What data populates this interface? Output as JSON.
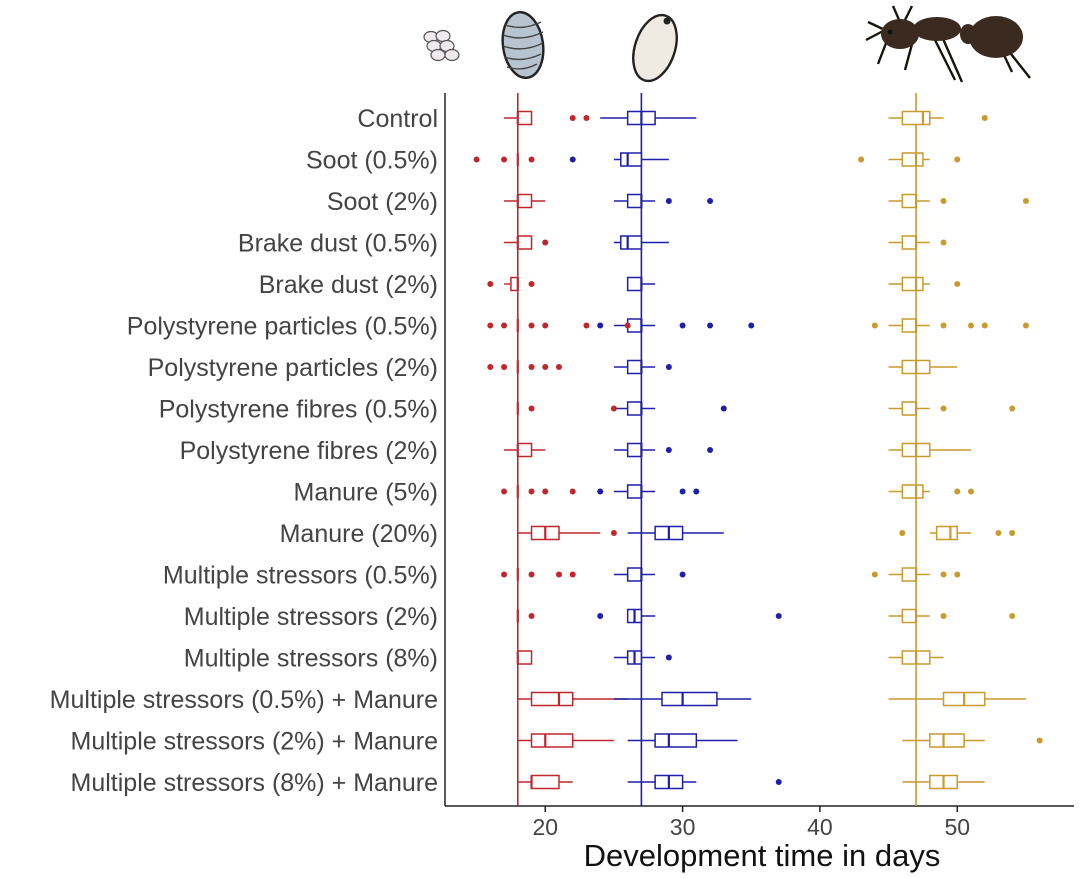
{
  "chart_data": {
    "type": "boxplot",
    "xlabel": "Development time in days",
    "xlim": [
      12.7,
      58.5
    ],
    "xticks": [
      20,
      30,
      40,
      50
    ],
    "categories": [
      "Control",
      "Soot (0.5%)",
      "Soot (2%)",
      "Brake dust (0.5%)",
      "Brake dust (2%)",
      "Polystyrene particles (0.5%)",
      "Polystyrene particles (2%)",
      "Polystyrene fibres (0.5%)",
      "Polystyrene fibres (2%)",
      "Manure (5%)",
      "Manure (20%)",
      "Multiple stressors (0.5%)",
      "Multiple stressors (2%)",
      "Multiple stressors (8%)",
      "Multiple stressors (0.5%) + Manure",
      "Multiple stressors (2%) + Manure",
      "Multiple stressors (8%) + Manure"
    ],
    "stage_icons": [
      "eggs-icon",
      "larva-icon",
      "pupa-icon",
      "ant-worker-icon"
    ],
    "series": [
      {
        "name": "Larval stage",
        "color": "#c0272d",
        "reference_line": 18,
        "boxes": [
          {
            "wlo": 17,
            "q1": 18,
            "med": 18,
            "q3": 19,
            "whi": 19,
            "outliers": [
              22,
              23
            ]
          },
          {
            "wlo": 18,
            "q1": 18,
            "med": 18,
            "q3": 18,
            "whi": 18,
            "outliers": [
              15,
              17,
              19
            ]
          },
          {
            "wlo": 17,
            "q1": 18,
            "med": 18,
            "q3": 19,
            "whi": 20,
            "outliers": []
          },
          {
            "wlo": 17,
            "q1": 18,
            "med": 18,
            "q3": 19,
            "whi": 19,
            "outliers": [
              20
            ]
          },
          {
            "wlo": 17,
            "q1": 17.5,
            "med": 18,
            "q3": 18,
            "whi": 18,
            "outliers": [
              16,
              19
            ]
          },
          {
            "wlo": 18,
            "q1": 18,
            "med": 18,
            "q3": 18,
            "whi": 18,
            "outliers": [
              16,
              17,
              19,
              20,
              23,
              26
            ]
          },
          {
            "wlo": 18,
            "q1": 18,
            "med": 18,
            "q3": 18,
            "whi": 18,
            "outliers": [
              16,
              17,
              19,
              20,
              21
            ]
          },
          {
            "wlo": 18,
            "q1": 18,
            "med": 18,
            "q3": 18,
            "whi": 18,
            "outliers": [
              19,
              25
            ]
          },
          {
            "wlo": 17,
            "q1": 18,
            "med": 18,
            "q3": 19,
            "whi": 20,
            "outliers": []
          },
          {
            "wlo": 18,
            "q1": 18,
            "med": 18,
            "q3": 18,
            "whi": 18,
            "outliers": [
              17,
              19,
              20,
              22
            ]
          },
          {
            "wlo": 18,
            "q1": 19,
            "med": 20,
            "q3": 21,
            "whi": 24,
            "outliers": [
              25
            ]
          },
          {
            "wlo": 18,
            "q1": 18,
            "med": 18,
            "q3": 18,
            "whi": 18,
            "outliers": [
              17,
              19,
              21,
              22
            ]
          },
          {
            "wlo": 18,
            "q1": 18,
            "med": 18,
            "q3": 18,
            "whi": 18,
            "outliers": [
              19
            ]
          },
          {
            "wlo": 18,
            "q1": 18,
            "med": 18,
            "q3": 19,
            "whi": 19,
            "outliers": []
          },
          {
            "wlo": 18,
            "q1": 19,
            "med": 21,
            "q3": 22,
            "whi": 26,
            "outliers": []
          },
          {
            "wlo": 18,
            "q1": 19,
            "med": 20,
            "q3": 22,
            "whi": 25,
            "outliers": []
          },
          {
            "wlo": 18,
            "q1": 19,
            "med": 19,
            "q3": 21,
            "whi": 22,
            "outliers": []
          }
        ]
      },
      {
        "name": "Pupal stage",
        "color": "#1f1fa8",
        "reference_line": 27,
        "boxes": [
          {
            "wlo": 24,
            "q1": 26,
            "med": 27,
            "q3": 28,
            "whi": 31,
            "outliers": []
          },
          {
            "wlo": 25,
            "q1": 25.5,
            "med": 26,
            "q3": 27,
            "whi": 29,
            "outliers": [
              22
            ]
          },
          {
            "wlo": 25,
            "q1": 26,
            "med": 27,
            "q3": 27,
            "whi": 28,
            "outliers": [
              29,
              32
            ]
          },
          {
            "wlo": 25,
            "q1": 25.5,
            "med": 26,
            "q3": 27,
            "whi": 29,
            "outliers": []
          },
          {
            "wlo": 26,
            "q1": 26,
            "med": 27,
            "q3": 27,
            "whi": 28,
            "outliers": []
          },
          {
            "wlo": 25,
            "q1": 26,
            "med": 27,
            "q3": 27,
            "whi": 28,
            "outliers": [
              24,
              30,
              32,
              35
            ]
          },
          {
            "wlo": 25,
            "q1": 26,
            "med": 27,
            "q3": 27,
            "whi": 28,
            "outliers": [
              29
            ]
          },
          {
            "wlo": 25,
            "q1": 26,
            "med": 27,
            "q3": 27,
            "whi": 28,
            "outliers": [
              33
            ]
          },
          {
            "wlo": 25,
            "q1": 26,
            "med": 27,
            "q3": 27,
            "whi": 28,
            "outliers": [
              29,
              32
            ]
          },
          {
            "wlo": 25,
            "q1": 26,
            "med": 27,
            "q3": 27,
            "whi": 28,
            "outliers": [
              24,
              30,
              31
            ]
          },
          {
            "wlo": 26,
            "q1": 28,
            "med": 29,
            "q3": 30,
            "whi": 33,
            "outliers": []
          },
          {
            "wlo": 25,
            "q1": 26,
            "med": 27,
            "q3": 27,
            "whi": 28,
            "outliers": [
              30
            ]
          },
          {
            "wlo": 26,
            "q1": 26,
            "med": 26.5,
            "q3": 27,
            "whi": 28,
            "outliers": [
              24,
              37
            ]
          },
          {
            "wlo": 25,
            "q1": 26,
            "med": 26.5,
            "q3": 27,
            "whi": 28,
            "outliers": [
              29
            ]
          },
          {
            "wlo": 25,
            "q1": 28.5,
            "med": 30,
            "q3": 32.5,
            "whi": 35,
            "outliers": []
          },
          {
            "wlo": 26,
            "q1": 28,
            "med": 29,
            "q3": 31,
            "whi": 34,
            "outliers": []
          },
          {
            "wlo": 26,
            "q1": 28,
            "med": 29,
            "q3": 30,
            "whi": 31,
            "outliers": [
              37
            ]
          }
        ]
      },
      {
        "name": "Adult emergence",
        "color": "#c99a2e",
        "reference_line": 47,
        "boxes": [
          {
            "wlo": 45,
            "q1": 46,
            "med": 47.5,
            "q3": 48,
            "whi": 49,
            "outliers": [
              52
            ]
          },
          {
            "wlo": 45,
            "q1": 46,
            "med": 47,
            "q3": 47.5,
            "whi": 48,
            "outliers": [
              43,
              50
            ]
          },
          {
            "wlo": 45,
            "q1": 46,
            "med": 47,
            "q3": 47,
            "whi": 48,
            "outliers": [
              49,
              55
            ]
          },
          {
            "wlo": 45,
            "q1": 46,
            "med": 47,
            "q3": 47,
            "whi": 48,
            "outliers": [
              49
            ]
          },
          {
            "wlo": 45,
            "q1": 46,
            "med": 47,
            "q3": 47.5,
            "whi": 48,
            "outliers": [
              50
            ]
          },
          {
            "wlo": 45,
            "q1": 46,
            "med": 47,
            "q3": 47,
            "whi": 48,
            "outliers": [
              44,
              49,
              51,
              52,
              55
            ]
          },
          {
            "wlo": 45,
            "q1": 46,
            "med": 47,
            "q3": 48,
            "whi": 50,
            "outliers": []
          },
          {
            "wlo": 45,
            "q1": 46,
            "med": 47,
            "q3": 47,
            "whi": 48,
            "outliers": [
              49,
              54
            ]
          },
          {
            "wlo": 45,
            "q1": 46,
            "med": 47,
            "q3": 48,
            "whi": 51,
            "outliers": []
          },
          {
            "wlo": 45,
            "q1": 46,
            "med": 47,
            "q3": 47.5,
            "whi": 48,
            "outliers": [
              50,
              51
            ]
          },
          {
            "wlo": 48,
            "q1": 48.5,
            "med": 49.5,
            "q3": 50,
            "whi": 51,
            "outliers": [
              46,
              53,
              54
            ]
          },
          {
            "wlo": 45,
            "q1": 46,
            "med": 47,
            "q3": 47,
            "whi": 48,
            "outliers": [
              44,
              49,
              50
            ]
          },
          {
            "wlo": 45,
            "q1": 46,
            "med": 47,
            "q3": 47,
            "whi": 48,
            "outliers": [
              49,
              54
            ]
          },
          {
            "wlo": 45,
            "q1": 46,
            "med": 47,
            "q3": 48,
            "whi": 49,
            "outliers": []
          },
          {
            "wlo": 45,
            "q1": 49,
            "med": 50.5,
            "q3": 52,
            "whi": 55,
            "outliers": []
          },
          {
            "wlo": 46,
            "q1": 48,
            "med": 49,
            "q3": 50.5,
            "whi": 52,
            "outliers": [
              56
            ]
          },
          {
            "wlo": 46,
            "q1": 48,
            "med": 49,
            "q3": 50,
            "whi": 52,
            "outliers": []
          }
        ]
      }
    ]
  }
}
